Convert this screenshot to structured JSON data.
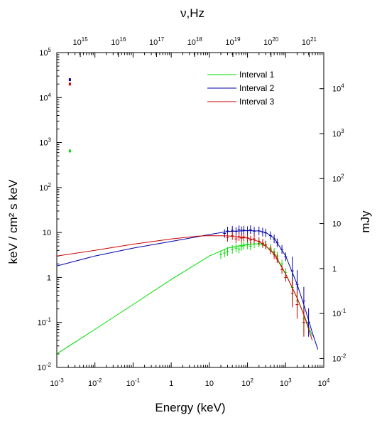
{
  "chart_data": {
    "type": "line",
    "xlabel": "Energy (keV)",
    "ylabel": "keV / cm² s keV",
    "top_xlabel": "ν,Hz",
    "right_ylabel": "mJy",
    "x_scale": "log",
    "y_scale": "log",
    "xlim": [
      0.001,
      10000
    ],
    "ylim": [
      0.01,
      100000
    ],
    "top_xlim_hz": [
      242000000000000,
      2420000000000000000000
    ],
    "right_ylim_mjy": [
      0.00633,
      63300
    ],
    "grid": false,
    "legend_position": "top-right",
    "x_ticks": [
      {
        "base": "10",
        "exp": "-3"
      },
      {
        "base": "10",
        "exp": "-2"
      },
      {
        "base": "10",
        "exp": "-1"
      },
      {
        "base": "1",
        "exp": ""
      },
      {
        "base": "10",
        "exp": ""
      },
      {
        "base": "10",
        "exp": "2"
      },
      {
        "base": "10",
        "exp": "3"
      },
      {
        "base": "10",
        "exp": "4"
      }
    ],
    "y_ticks": [
      {
        "base": "10",
        "exp": "-2"
      },
      {
        "base": "10",
        "exp": "-1"
      },
      {
        "base": "1",
        "exp": ""
      },
      {
        "base": "10",
        "exp": ""
      },
      {
        "base": "10",
        "exp": "2"
      },
      {
        "base": "10",
        "exp": "3"
      },
      {
        "base": "10",
        "exp": "4"
      },
      {
        "base": "10",
        "exp": "5"
      }
    ],
    "top_ticks": [
      {
        "base": "10",
        "exp": "15"
      },
      {
        "base": "10",
        "exp": "16"
      },
      {
        "base": "10",
        "exp": "17"
      },
      {
        "base": "10",
        "exp": "18"
      },
      {
        "base": "10",
        "exp": "19"
      },
      {
        "base": "10",
        "exp": "20"
      },
      {
        "base": "10",
        "exp": "21"
      }
    ],
    "right_ticks": [
      {
        "base": "10",
        "exp": "-2"
      },
      {
        "base": "10",
        "exp": "-1"
      },
      {
        "base": "1",
        "exp": ""
      },
      {
        "base": "10",
        "exp": ""
      },
      {
        "base": "10",
        "exp": "2"
      },
      {
        "base": "10",
        "exp": "3"
      },
      {
        "base": "10",
        "exp": "4"
      }
    ],
    "series": [
      {
        "name": "Interval 1",
        "color": "#00dd00",
        "model": {
          "x": [
            0.001,
            0.01,
            0.1,
            1,
            10,
            30,
            100,
            200,
            300,
            500,
            1000,
            2000,
            3000,
            5000
          ],
          "y": [
            0.02,
            0.07,
            0.25,
            0.9,
            3.0,
            4.5,
            5.5,
            5.6,
            5.0,
            3.5,
            1.2,
            0.35,
            0.15,
            0.05
          ]
        },
        "data_points": {
          "x": [
            20,
            25,
            30,
            40,
            50,
            60,
            70,
            80,
            100,
            120,
            150,
            200,
            250,
            300,
            400,
            500,
            600,
            800,
            1000,
            1500,
            2000,
            3000
          ],
          "y": [
            3.2,
            3.5,
            3.8,
            4.2,
            4.5,
            4.3,
            4.9,
            5.1,
            5.3,
            5.0,
            5.6,
            5.8,
            5.6,
            5.2,
            4.5,
            3.6,
            3.0,
            2.0,
            1.3,
            0.6,
            0.3,
            0.12
          ]
        },
        "optical_point": {
          "x": 0.0022,
          "y": 650
        }
      },
      {
        "name": "Interval 2",
        "color": "#0000aa",
        "model": {
          "x": [
            0.001,
            0.01,
            0.1,
            1,
            10,
            30,
            100,
            200,
            300,
            500,
            1000,
            2000,
            3000,
            5000,
            7000
          ],
          "y": [
            1.8,
            3.0,
            4.5,
            6.3,
            9.0,
            10.5,
            11.0,
            10.8,
            10.0,
            7.5,
            3.0,
            0.7,
            0.25,
            0.06,
            0.025
          ]
        },
        "data_points": {
          "x": [
            25,
            30,
            40,
            50,
            60,
            70,
            80,
            100,
            120,
            150,
            200,
            250,
            300,
            400,
            500,
            600,
            800,
            1000,
            1500,
            2000,
            3000,
            4000
          ],
          "y": [
            9.5,
            10.8,
            11.2,
            10.6,
            11.5,
            10.9,
            11.3,
            11.0,
            11.6,
            10.7,
            10.9,
            10.2,
            9.8,
            8.5,
            7.2,
            5.9,
            4.2,
            2.9,
            1.4,
            0.7,
            0.3,
            0.1
          ]
        },
        "optical_point": {
          "x": 0.0022,
          "y": 25000
        }
      },
      {
        "name": "Interval 3",
        "color": "#cc0000",
        "model": {
          "x": [
            0.001,
            0.01,
            0.1,
            1,
            5,
            10,
            30,
            100,
            200,
            300,
            500,
            1000,
            2000,
            3000,
            5000
          ],
          "y": [
            3.0,
            4.0,
            5.5,
            7.2,
            8.3,
            8.5,
            8.4,
            7.5,
            6.3,
            5.0,
            3.3,
            1.2,
            0.35,
            0.15,
            0.04
          ]
        },
        "data_points": {
          "x": [
            30,
            40,
            50,
            60,
            70,
            80,
            100,
            120,
            150,
            200,
            250,
            300,
            400,
            500,
            600,
            800,
            1000,
            1500,
            2000,
            3000
          ],
          "y": [
            7.8,
            8.5,
            7.2,
            8.1,
            7.5,
            8.0,
            7.6,
            6.8,
            7.2,
            6.4,
            5.8,
            5.3,
            4.1,
            3.2,
            2.6,
            1.5,
            1.0,
            0.45,
            0.25,
            0.1
          ]
        },
        "optical_point": {
          "x": 0.0022,
          "y": 20000
        }
      }
    ]
  }
}
